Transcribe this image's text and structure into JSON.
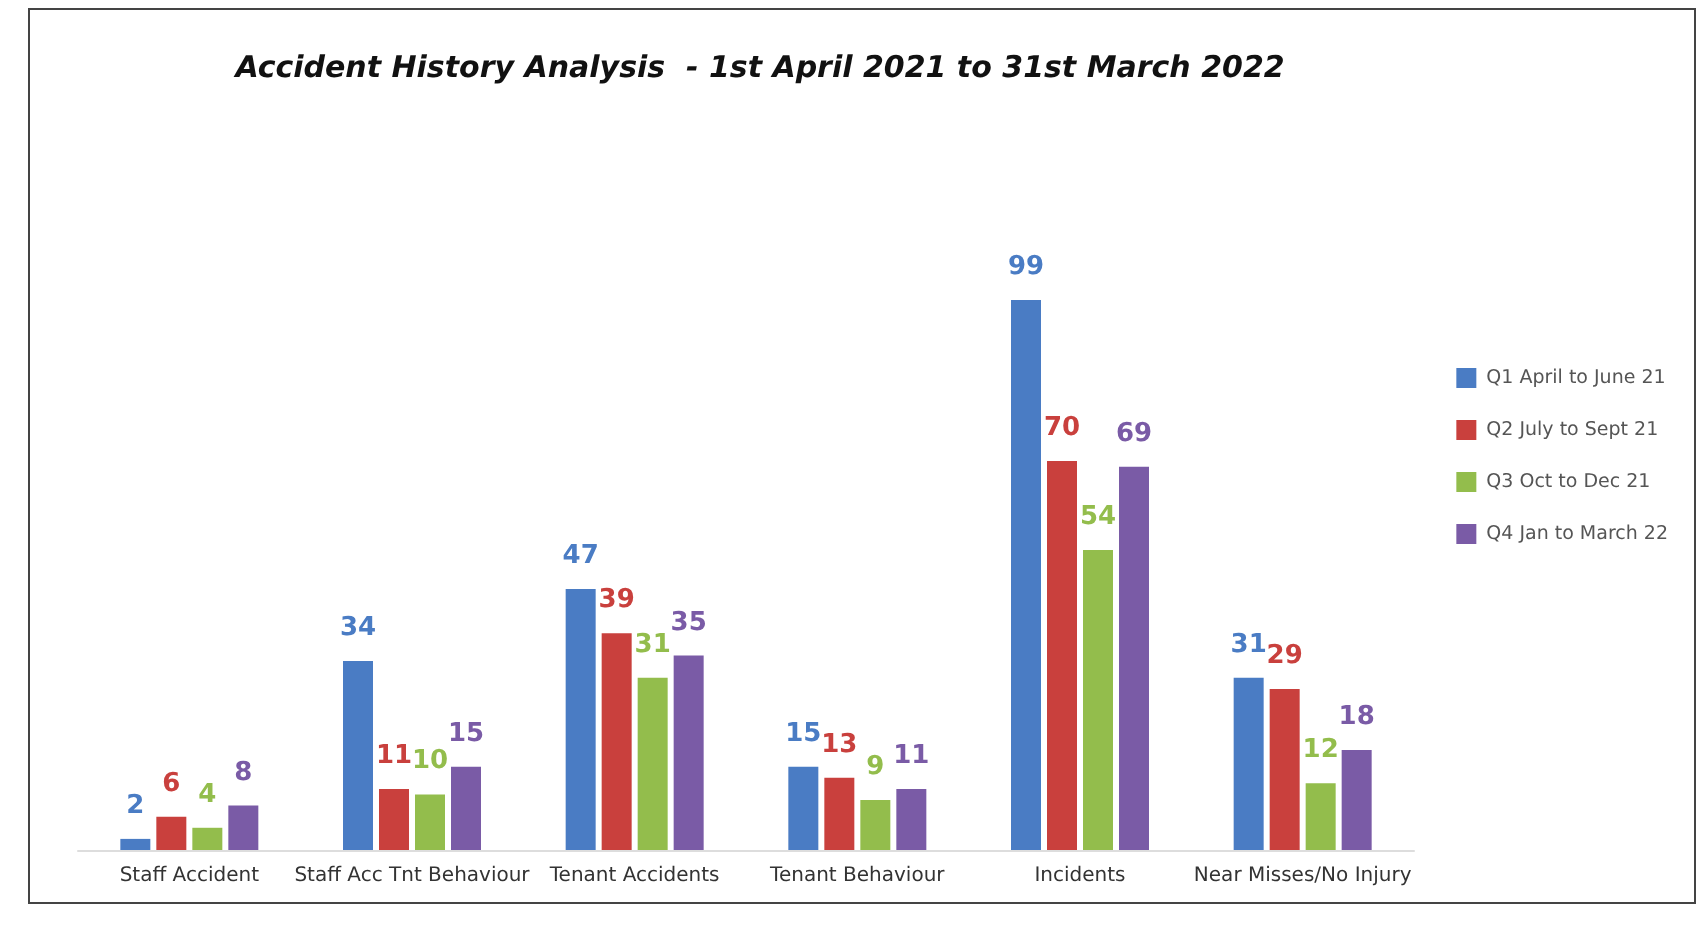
{
  "chart_data": {
    "type": "bar",
    "title": "Accident History Analysis  - 1st April 2021 to 31st March 2022",
    "categories": [
      "Staff Accident",
      "Staff Acc Tnt Behaviour",
      "Tenant Accidents",
      "Tenant Behaviour",
      "Incidents",
      "Near Misses/No Injury"
    ],
    "series": [
      {
        "name": "Q1 April to June 21",
        "color": "#4a7cc4",
        "values": [
          2,
          34,
          47,
          15,
          99,
          31
        ]
      },
      {
        "name": "Q2 July to Sept 21",
        "color": "#c9403d",
        "values": [
          6,
          11,
          39,
          13,
          70,
          29
        ]
      },
      {
        "name": "Q3 Oct to Dec 21",
        "color": "#93bd4c",
        "values": [
          4,
          10,
          31,
          9,
          54,
          12
        ]
      },
      {
        "name": "Q4 Jan to March 22",
        "color": "#7a5ba6",
        "values": [
          8,
          15,
          35,
          11,
          69,
          18
        ]
      }
    ],
    "data_labels": true,
    "legend": "right"
  }
}
